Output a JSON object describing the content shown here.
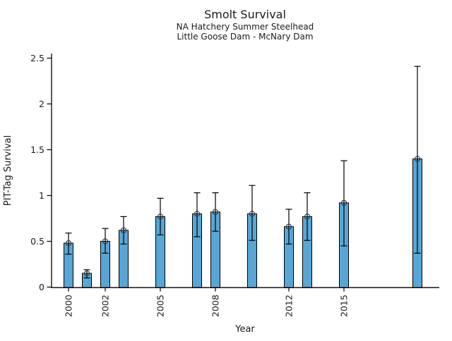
{
  "title": "Smolt Survival",
  "subtitle1": "NA Hatchery Summer Steelhead",
  "subtitle2": "Little Goose Dam - McNary Dam",
  "chart_data": {
    "type": "bar",
    "title": "Smolt Survival",
    "subtitle": [
      "NA Hatchery Summer Steelhead",
      "Little Goose Dam - McNary Dam"
    ],
    "xlabel": "Year",
    "ylabel": "PIT-Tag Survival",
    "ylim": [
      0,
      2.54
    ],
    "xlim": [
      1999.1,
      2020.1
    ],
    "grid": false,
    "legend": "none",
    "yticks": [
      0,
      0.5,
      1,
      1.5,
      2,
      2.5
    ],
    "ytick_labels": [
      "0",
      "0.5",
      "1",
      "1.5",
      "2",
      "2.5"
    ],
    "xticks": [
      2000,
      2002,
      2005,
      2008,
      2012,
      2015
    ],
    "xtick_labels": [
      "2000",
      "2002",
      "2005",
      "2008",
      "2012",
      "2015"
    ],
    "xtick_rotation_degrees": 90,
    "bar_width_years": 0.5,
    "bar_color": "#58A6D6",
    "bar_edge_color": "#000000",
    "error_bar_color": "#000000",
    "marker": "open-circle",
    "marker_color": "#333333",
    "series": [
      {
        "name": "PIT-Tag Survival",
        "x": [
          2000,
          2001,
          2002,
          2003,
          2005,
          2007,
          2008,
          2010,
          2012,
          2013,
          2015,
          2019
        ],
        "values": [
          0.48,
          0.15,
          0.5,
          0.62,
          0.77,
          0.8,
          0.82,
          0.8,
          0.66,
          0.77,
          0.92,
          1.4
        ],
        "error_low": [
          0.36,
          0.1,
          0.37,
          0.47,
          0.57,
          0.55,
          0.61,
          0.51,
          0.47,
          0.51,
          0.45,
          0.37
        ],
        "error_high": [
          0.59,
          0.19,
          0.64,
          0.77,
          0.97,
          1.03,
          1.03,
          1.11,
          0.85,
          1.03,
          1.38,
          2.41
        ]
      }
    ]
  }
}
